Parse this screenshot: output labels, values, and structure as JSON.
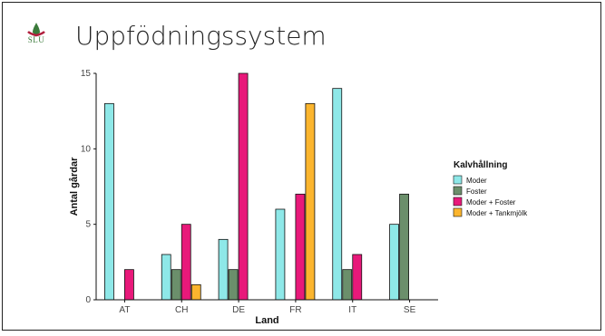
{
  "slide": {
    "title": "Uppfödningssystem",
    "logo_text": "SLU"
  },
  "colors": {
    "Moder": "#8ee8e8",
    "Foster": "#6b8f6b",
    "Moder + Foster": "#e8197a",
    "Moder + Tankmjölk": "#fbb52e",
    "logo_green": "#3a7a3a",
    "logo_red": "#b01e3c"
  },
  "chart_data": {
    "type": "bar",
    "xlabel": "Land",
    "ylabel": "Antal gårdar",
    "ylim": [
      0,
      15
    ],
    "yticks": [
      0,
      5,
      10,
      15
    ],
    "categories": [
      "AT",
      "CH",
      "DE",
      "FR",
      "IT",
      "SE"
    ],
    "legend_title": "Kalvhållning",
    "legend_position": "right",
    "series": [
      {
        "name": "Moder",
        "values": [
          13,
          3,
          4,
          6,
          14,
          5
        ]
      },
      {
        "name": "Foster",
        "values": [
          null,
          2,
          2,
          null,
          2,
          7
        ]
      },
      {
        "name": "Moder + Foster",
        "values": [
          2,
          5,
          15,
          7,
          3,
          null
        ]
      },
      {
        "name": "Moder + Tankmjölk",
        "values": [
          null,
          1,
          null,
          13,
          null,
          null
        ]
      }
    ]
  }
}
